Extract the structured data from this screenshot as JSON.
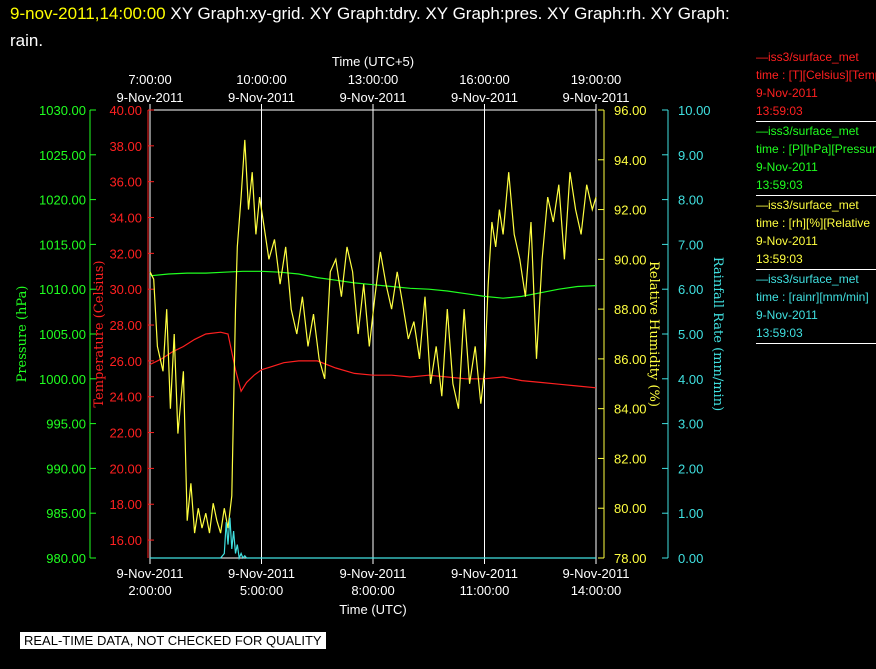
{
  "header": {
    "timestamp": "9-nov-2011,14:00:00",
    "line1": "  XY Graph:xy-grid.  XY Graph:tdry.  XY Graph:pres.  XY Graph:rh.  XY Graph:",
    "line2": "rain."
  },
  "disclaimer": "REAL-TIME DATA, NOT CHECKED FOR QUALITY",
  "legend": [
    {
      "name": "—iss3/surface_met",
      "desc": "time : [T][Celsius][Temp",
      "date": "9-Nov-2011",
      "time": "13:59:03",
      "color": "#ff2020"
    },
    {
      "name": "—iss3/surface_met",
      "desc": "time : [P][hPa][Pressure",
      "date": "9-Nov-2011",
      "time": "13:59:03",
      "color": "#20ff20"
    },
    {
      "name": "—iss3/surface_met",
      "desc": "time : [rh][%][Relative",
      "date": "9-Nov-2011",
      "time": "13:59:03",
      "color": "#ffff40"
    },
    {
      "name": "—iss3/surface_met",
      "desc": "time : [rainr][mm/min]",
      "date": "9-Nov-2011",
      "time": "13:59:03",
      "color": "#40e0e0"
    }
  ],
  "chart_data": {
    "type": "line",
    "top_axis": {
      "label": "Time (UTC+5)",
      "ticks": [
        {
          "t": 2,
          "time": "7:00:00",
          "date": "9-Nov-2011"
        },
        {
          "t": 5,
          "time": "10:00:00",
          "date": "9-Nov-2011"
        },
        {
          "t": 8,
          "time": "13:00:00",
          "date": "9-Nov-2011"
        },
        {
          "t": 11,
          "time": "16:00:00",
          "date": "9-Nov-2011"
        },
        {
          "t": 14,
          "time": "19:00:00",
          "date": "9-Nov-2011"
        }
      ]
    },
    "bottom_axis": {
      "label": "Time (UTC)",
      "range": [
        "2:00:00",
        "14:00:00"
      ],
      "ticks": [
        {
          "t": 2,
          "date": "9-Nov-2011",
          "time": "2:00:00"
        },
        {
          "t": 5,
          "date": "9-Nov-2011",
          "time": "5:00:00"
        },
        {
          "t": 8,
          "date": "9-Nov-2011",
          "time": "8:00:00"
        },
        {
          "t": 11,
          "date": "9-Nov-2011",
          "time": "11:00:00"
        },
        {
          "t": 14,
          "date": "9-Nov-2011",
          "time": "14:00:00"
        }
      ]
    },
    "grid": "vertical",
    "y_axes": [
      {
        "name": "Pressure (hPa)",
        "color": "#20ff20",
        "side": "left",
        "range": [
          980,
          1030
        ],
        "ticks": [
          "980.00",
          "985.00",
          "990.00",
          "995.00",
          "1000.00",
          "1005.00",
          "1010.00",
          "1015.00",
          "1020.00",
          "1025.00",
          "1030.00"
        ]
      },
      {
        "name": "Temperature (Celsius)",
        "color": "#ff2020",
        "side": "left",
        "range": [
          15,
          40
        ],
        "ticks": [
          "16.00",
          "18.00",
          "20.00",
          "22.00",
          "24.00",
          "26.00",
          "28.00",
          "30.00",
          "32.00",
          "34.00",
          "36.00",
          "38.00",
          "40.00"
        ]
      },
      {
        "name": "Relative Humidity (%)",
        "color": "#ffff40",
        "side": "right",
        "range": [
          78,
          96
        ],
        "ticks": [
          "78.00",
          "80.00",
          "82.00",
          "84.00",
          "86.00",
          "88.00",
          "90.00",
          "92.00",
          "94.00",
          "96.00"
        ]
      },
      {
        "name": "Rainfall Rate (mm/min)",
        "color": "#40e0e0",
        "side": "right",
        "range": [
          0,
          10
        ],
        "ticks": [
          "0.00",
          "1.00",
          "2.00",
          "3.00",
          "4.00",
          "5.00",
          "6.00",
          "7.00",
          "8.00",
          "9.00",
          "10.00"
        ]
      }
    ],
    "series": [
      {
        "name": "Temperature",
        "axis": 1,
        "color": "#ff2020",
        "x": [
          2.0,
          2.3,
          2.6,
          2.9,
          3.2,
          3.5,
          3.9,
          4.1,
          4.3,
          4.45,
          4.6,
          4.8,
          5.0,
          5.3,
          5.6,
          6.0,
          6.5,
          7.0,
          7.5,
          8.0,
          8.5,
          9.0,
          9.5,
          10.0,
          10.5,
          11.0,
          11.5,
          12.0,
          12.5,
          13.0,
          13.5,
          14.0
        ],
        "y": [
          25.8,
          26.1,
          26.5,
          26.8,
          27.2,
          27.5,
          27.6,
          27.5,
          25.5,
          24.3,
          24.8,
          25.2,
          25.5,
          25.7,
          25.9,
          26.0,
          26.0,
          25.6,
          25.3,
          25.2,
          25.2,
          25.1,
          25.2,
          25.1,
          25.0,
          25.0,
          25.1,
          24.9,
          24.8,
          24.7,
          24.6,
          24.5
        ]
      },
      {
        "name": "Pressure",
        "axis": 0,
        "color": "#20ff20",
        "x": [
          2.0,
          2.5,
          3.0,
          3.5,
          4.0,
          4.5,
          5.0,
          5.5,
          6.0,
          6.5,
          7.0,
          7.5,
          8.0,
          8.5,
          9.0,
          9.5,
          10.0,
          10.5,
          11.0,
          11.5,
          12.0,
          12.5,
          13.0,
          13.5,
          14.0
        ],
        "y": [
          1011.5,
          1011.7,
          1011.8,
          1011.8,
          1011.9,
          1012.0,
          1012.0,
          1011.9,
          1011.7,
          1011.3,
          1011.0,
          1010.7,
          1010.5,
          1010.3,
          1010.1,
          1010.0,
          1009.8,
          1009.5,
          1009.2,
          1009.0,
          1009.2,
          1009.6,
          1010.0,
          1010.3,
          1010.4
        ]
      },
      {
        "name": "Relative Humidity",
        "axis": 2,
        "color": "#ffff40",
        "x": [
          2.0,
          2.1,
          2.2,
          2.35,
          2.45,
          2.55,
          2.65,
          2.75,
          2.9,
          3.0,
          3.1,
          3.2,
          3.3,
          3.4,
          3.5,
          3.6,
          3.7,
          3.8,
          3.9,
          4.0,
          4.1,
          4.2,
          4.3,
          4.35,
          4.45,
          4.55,
          4.65,
          4.75,
          4.85,
          4.95,
          5.05,
          5.2,
          5.35,
          5.5,
          5.65,
          5.8,
          5.95,
          6.1,
          6.25,
          6.4,
          6.55,
          6.7,
          6.85,
          7.0,
          7.15,
          7.3,
          7.45,
          7.6,
          7.75,
          7.9,
          8.05,
          8.2,
          8.35,
          8.5,
          8.65,
          8.8,
          8.95,
          9.1,
          9.25,
          9.4,
          9.55,
          9.7,
          9.85,
          10.0,
          10.15,
          10.3,
          10.45,
          10.6,
          10.75,
          10.9,
          11.0,
          11.1,
          11.2,
          11.3,
          11.4,
          11.5,
          11.65,
          11.8,
          11.95,
          12.1,
          12.25,
          12.4,
          12.55,
          12.7,
          12.85,
          13.0,
          13.15,
          13.3,
          13.45,
          13.6,
          13.75,
          13.9,
          14.0
        ],
        "y": [
          89.5,
          89.2,
          86.5,
          85.5,
          88.0,
          84.0,
          87.0,
          83.0,
          85.5,
          79.5,
          81.0,
          79.0,
          80.0,
          79.2,
          79.8,
          79.0,
          80.2,
          79.5,
          79.0,
          80.0,
          79.2,
          80.5,
          88.0,
          90.5,
          92.5,
          94.8,
          92.0,
          93.5,
          91.0,
          92.5,
          91.5,
          90.0,
          90.8,
          89.0,
          90.5,
          88.0,
          87.0,
          88.5,
          86.5,
          87.8,
          86.0,
          85.2,
          89.5,
          90.0,
          88.5,
          90.5,
          89.5,
          87.0,
          89.0,
          86.5,
          88.5,
          90.3,
          89.0,
          88.0,
          89.5,
          88.2,
          86.8,
          87.5,
          86.0,
          88.5,
          85.0,
          86.5,
          84.5,
          88.0,
          85.0,
          84.0,
          88.0,
          85.0,
          86.5,
          84.2,
          85.5,
          89.0,
          91.5,
          90.5,
          92.0,
          91.0,
          93.5,
          91.0,
          90.0,
          88.5,
          91.5,
          86.0,
          90.0,
          92.5,
          91.5,
          93.0,
          90.0,
          93.5,
          92.0,
          91.0,
          93.0,
          92.0,
          92.5
        ]
      },
      {
        "name": "Rainfall Rate",
        "axis": 3,
        "color": "#40e0e0",
        "x": [
          2.0,
          3.0,
          3.5,
          3.9,
          4.0,
          4.05,
          4.1,
          4.15,
          4.2,
          4.25,
          4.3,
          4.35,
          4.4,
          4.45,
          4.5,
          4.55,
          4.6,
          5.0,
          6.0,
          8.0,
          10.0,
          12.0,
          14.0
        ],
        "y": [
          0.0,
          0.0,
          0.0,
          0.0,
          0.1,
          0.8,
          0.3,
          0.9,
          0.2,
          0.6,
          0.1,
          0.3,
          0.0,
          0.1,
          0.0,
          0.05,
          0.0,
          0.0,
          0.0,
          0.0,
          0.0,
          0.0,
          0.0
        ]
      }
    ]
  }
}
